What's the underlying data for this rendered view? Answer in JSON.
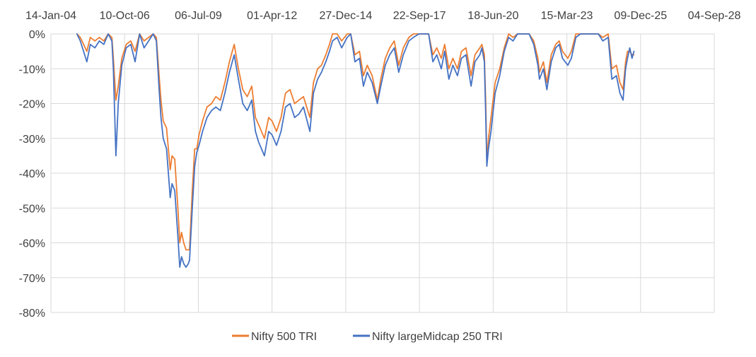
{
  "chart_data": {
    "type": "line",
    "title": "",
    "xlabel": "",
    "ylabel": "",
    "x_tick_labels": [
      "14-Jan-04",
      "10-Oct-06",
      "06-Jul-09",
      "01-Apr-12",
      "27-Dec-14",
      "22-Sep-17",
      "18-Jun-20",
      "15-Mar-23",
      "09-Dec-25",
      "04-Sep-28"
    ],
    "y_tick_labels": [
      "0%",
      "-10%",
      "-20%",
      "-30%",
      "-40%",
      "-50%",
      "-60%",
      "-70%",
      "-80%"
    ],
    "y_ticks": [
      0,
      -10,
      -20,
      -30,
      -40,
      -50,
      -60,
      -70,
      -80
    ],
    "xlim": [
      "2004-01-14",
      "2028-09-04"
    ],
    "ylim": [
      -80,
      0
    ],
    "x_axis_position": "top",
    "grid": "vertical and horizontal",
    "legend": "bottom",
    "series": [
      {
        "name": "Nifty 500 TRI",
        "color": "#ED7D31",
        "x": [
          "2005-01-01",
          "2005-02-15",
          "2005-04-01",
          "2005-05-15",
          "2005-07-01",
          "2005-09-01",
          "2005-11-01",
          "2006-01-01",
          "2006-03-01",
          "2006-04-20",
          "2006-05-10",
          "2006-06-14",
          "2006-07-15",
          "2006-09-01",
          "2006-11-01",
          "2007-01-01",
          "2007-03-01",
          "2007-05-01",
          "2007-07-01",
          "2007-09-01",
          "2007-11-01",
          "2007-12-15",
          "2008-01-21",
          "2008-02-15",
          "2008-03-17",
          "2008-05-01",
          "2008-06-20",
          "2008-07-15",
          "2008-08-20",
          "2008-10-01",
          "2008-10-27",
          "2008-11-20",
          "2008-12-20",
          "2009-01-20",
          "2009-02-20",
          "2009-03-09",
          "2009-04-15",
          "2009-05-18",
          "2009-06-15",
          "2009-07-15",
          "2009-09-01",
          "2009-11-01",
          "2010-01-01",
          "2010-03-01",
          "2010-05-01",
          "2010-07-01",
          "2010-09-01",
          "2010-11-05",
          "2011-01-01",
          "2011-03-01",
          "2011-05-01",
          "2011-07-01",
          "2011-08-20",
          "2011-10-01",
          "2011-12-20",
          "2012-02-15",
          "2012-04-01",
          "2012-06-01",
          "2012-08-01",
          "2012-10-01",
          "2012-12-01",
          "2013-02-01",
          "2013-04-01",
          "2013-06-01",
          "2013-08-28",
          "2013-10-15",
          "2013-12-10",
          "2014-02-01",
          "2014-04-01",
          "2014-05-20",
          "2014-07-01",
          "2014-09-01",
          "2014-11-01",
          "2015-01-15",
          "2015-03-04",
          "2015-05-01",
          "2015-07-01",
          "2015-08-24",
          "2015-10-15",
          "2015-12-20",
          "2016-02-29",
          "2016-04-15",
          "2016-06-15",
          "2016-08-15",
          "2016-10-15",
          "2016-12-15",
          "2017-02-15",
          "2017-05-01",
          "2017-07-01",
          "2017-09-15",
          "2017-11-15",
          "2018-01-25",
          "2018-03-23",
          "2018-05-15",
          "2018-07-15",
          "2018-08-30",
          "2018-10-26",
          "2018-12-20",
          "2019-02-20",
          "2019-04-15",
          "2019-06-15",
          "2019-08-23",
          "2019-10-15",
          "2019-12-20",
          "2020-01-17",
          "2020-02-20",
          "2020-03-10",
          "2020-03-24",
          "2020-04-15",
          "2020-05-20",
          "2020-07-15",
          "2020-09-15",
          "2020-11-15",
          "2021-01-15",
          "2021-03-15",
          "2021-05-15",
          "2021-07-15",
          "2021-09-15",
          "2021-10-19",
          "2021-12-20",
          "2022-02-15",
          "2022-03-08",
          "2022-05-01",
          "2022-06-17",
          "2022-08-15",
          "2022-10-15",
          "2022-12-01",
          "2023-01-15",
          "2023-03-28",
          "2023-05-15",
          "2023-07-15",
          "2023-09-15",
          "2023-11-15",
          "2024-01-15",
          "2024-03-15",
          "2024-05-15",
          "2024-07-15",
          "2024-09-26",
          "2024-11-15",
          "2025-01-15",
          "2025-03-04",
          "2025-04-15",
          "2025-05-20",
          "2025-06-15",
          "2025-07-15",
          "2025-08-15",
          "2025-09-10"
        ],
        "values": [
          0,
          -1,
          -3,
          -5,
          -1,
          -2,
          -1,
          -2,
          0,
          -1,
          -7,
          -19,
          -15,
          -7,
          -3,
          -2,
          -5,
          0,
          -2,
          -1,
          0,
          -1,
          -12,
          -19,
          -25,
          -27,
          -39,
          -35,
          -36,
          -50,
          -60,
          -57,
          -60,
          -62,
          -62,
          -62,
          -45,
          -33,
          -33,
          -29,
          -25,
          -21,
          -20,
          -18,
          -19,
          -14,
          -8,
          -3,
          -10,
          -16,
          -18,
          -15,
          -24,
          -26,
          -30,
          -24,
          -25,
          -28,
          -24,
          -17,
          -16,
          -20,
          -19,
          -18,
          -24,
          -14,
          -10,
          -9,
          -6,
          -3,
          0,
          0,
          -2,
          0,
          0,
          -6,
          -5,
          -12,
          -9,
          -12,
          -19,
          -13,
          -7,
          -4,
          -2,
          -9,
          -4,
          -1,
          0,
          0,
          0,
          0,
          -6,
          -4,
          -7,
          -3,
          -10,
          -7,
          -10,
          -5,
          -4,
          -12,
          -6,
          -4,
          -3,
          -6,
          -20,
          -37,
          -30,
          -24,
          -14,
          -10,
          -4,
          0,
          -1,
          0,
          0,
          0,
          0,
          -2,
          -7,
          -11,
          -8,
          -14,
          -6,
          -3,
          -2,
          -5,
          -7,
          -5,
          0,
          0,
          0,
          0,
          0,
          0,
          -1,
          0,
          -10,
          -9,
          -14,
          -16,
          -8,
          -5,
          -5,
          -6,
          -6
        ]
      },
      {
        "name": "Nifty largeMidcap 250 TRI",
        "color": "#4472C4",
        "x": [
          "2005-01-01",
          "2005-02-15",
          "2005-04-01",
          "2005-05-15",
          "2005-07-01",
          "2005-09-01",
          "2005-11-01",
          "2006-01-01",
          "2006-03-01",
          "2006-04-20",
          "2006-05-10",
          "2006-06-14",
          "2006-07-15",
          "2006-09-01",
          "2006-11-01",
          "2007-01-01",
          "2007-03-01",
          "2007-05-01",
          "2007-07-01",
          "2007-09-01",
          "2007-11-01",
          "2007-12-15",
          "2008-01-21",
          "2008-02-15",
          "2008-03-17",
          "2008-05-01",
          "2008-06-20",
          "2008-07-15",
          "2008-08-20",
          "2008-10-01",
          "2008-10-27",
          "2008-11-20",
          "2008-12-20",
          "2009-01-20",
          "2009-02-20",
          "2009-03-09",
          "2009-04-15",
          "2009-05-18",
          "2009-06-15",
          "2009-07-15",
          "2009-09-01",
          "2009-11-01",
          "2010-01-01",
          "2010-03-01",
          "2010-05-01",
          "2010-07-01",
          "2010-09-01",
          "2010-11-05",
          "2011-01-01",
          "2011-03-01",
          "2011-05-01",
          "2011-07-01",
          "2011-08-20",
          "2011-10-01",
          "2011-12-20",
          "2012-02-15",
          "2012-04-01",
          "2012-06-01",
          "2012-08-01",
          "2012-10-01",
          "2012-12-01",
          "2013-02-01",
          "2013-04-01",
          "2013-06-01",
          "2013-08-28",
          "2013-10-15",
          "2013-12-10",
          "2014-02-01",
          "2014-04-01",
          "2014-05-20",
          "2014-07-01",
          "2014-09-01",
          "2014-11-01",
          "2015-01-15",
          "2015-03-04",
          "2015-05-01",
          "2015-07-01",
          "2015-08-24",
          "2015-10-15",
          "2015-12-20",
          "2016-02-29",
          "2016-04-15",
          "2016-06-15",
          "2016-08-15",
          "2016-10-15",
          "2016-12-15",
          "2017-02-15",
          "2017-05-01",
          "2017-07-01",
          "2017-09-15",
          "2017-11-15",
          "2018-01-25",
          "2018-03-23",
          "2018-05-15",
          "2018-07-15",
          "2018-08-30",
          "2018-10-26",
          "2018-12-20",
          "2019-02-20",
          "2019-04-15",
          "2019-06-15",
          "2019-08-23",
          "2019-10-15",
          "2019-12-20",
          "2020-01-17",
          "2020-02-20",
          "2020-03-10",
          "2020-03-24",
          "2020-04-15",
          "2020-05-20",
          "2020-07-15",
          "2020-09-15",
          "2020-11-15",
          "2021-01-15",
          "2021-03-15",
          "2021-05-15",
          "2021-07-15",
          "2021-09-15",
          "2021-10-19",
          "2021-12-20",
          "2022-02-15",
          "2022-03-08",
          "2022-05-01",
          "2022-06-17",
          "2022-08-15",
          "2022-10-15",
          "2022-12-01",
          "2023-01-15",
          "2023-03-28",
          "2023-05-15",
          "2023-07-15",
          "2023-09-15",
          "2023-11-15",
          "2024-01-15",
          "2024-03-15",
          "2024-05-15",
          "2024-07-15",
          "2024-09-26",
          "2024-11-15",
          "2025-01-15",
          "2025-03-04",
          "2025-04-15",
          "2025-05-20",
          "2025-06-15",
          "2025-07-15",
          "2025-08-15",
          "2025-09-10"
        ],
        "values": [
          0,
          -2,
          -5,
          -8,
          -3,
          -4,
          -2,
          -3,
          0,
          -2,
          -10,
          -35,
          -20,
          -9,
          -4,
          -3,
          -8,
          0,
          -4,
          -2,
          0,
          -2,
          -16,
          -24,
          -30,
          -33,
          -47,
          -43,
          -45,
          -58,
          -67,
          -64,
          -66,
          -67,
          -66,
          -65,
          -50,
          -38,
          -34,
          -32,
          -28,
          -24,
          -22,
          -21,
          -22,
          -17,
          -11,
          -6,
          -13,
          -20,
          -22,
          -19,
          -28,
          -31,
          -35,
          -28,
          -29,
          -32,
          -28,
          -21,
          -20,
          -24,
          -23,
          -21,
          -28,
          -17,
          -13,
          -11,
          -8,
          -5,
          -2,
          -1,
          -4,
          -1,
          0,
          -8,
          -7,
          -15,
          -11,
          -14,
          -20,
          -15,
          -9,
          -6,
          -4,
          -11,
          -6,
          -2,
          -1,
          0,
          0,
          0,
          -8,
          -6,
          -10,
          -5,
          -13,
          -9,
          -12,
          -7,
          -6,
          -15,
          -8,
          -6,
          -4,
          -8,
          -24,
          -38,
          -33,
          -28,
          -17,
          -12,
          -5,
          -1,
          -2,
          0,
          0,
          0,
          0,
          -3,
          -9,
          -13,
          -10,
          -16,
          -8,
          -4,
          -3,
          -7,
          -9,
          -7,
          -1,
          0,
          0,
          0,
          0,
          0,
          -2,
          -1,
          -13,
          -12,
          -17,
          -19,
          -10,
          -7,
          -4,
          -7,
          -5
        ]
      }
    ]
  }
}
